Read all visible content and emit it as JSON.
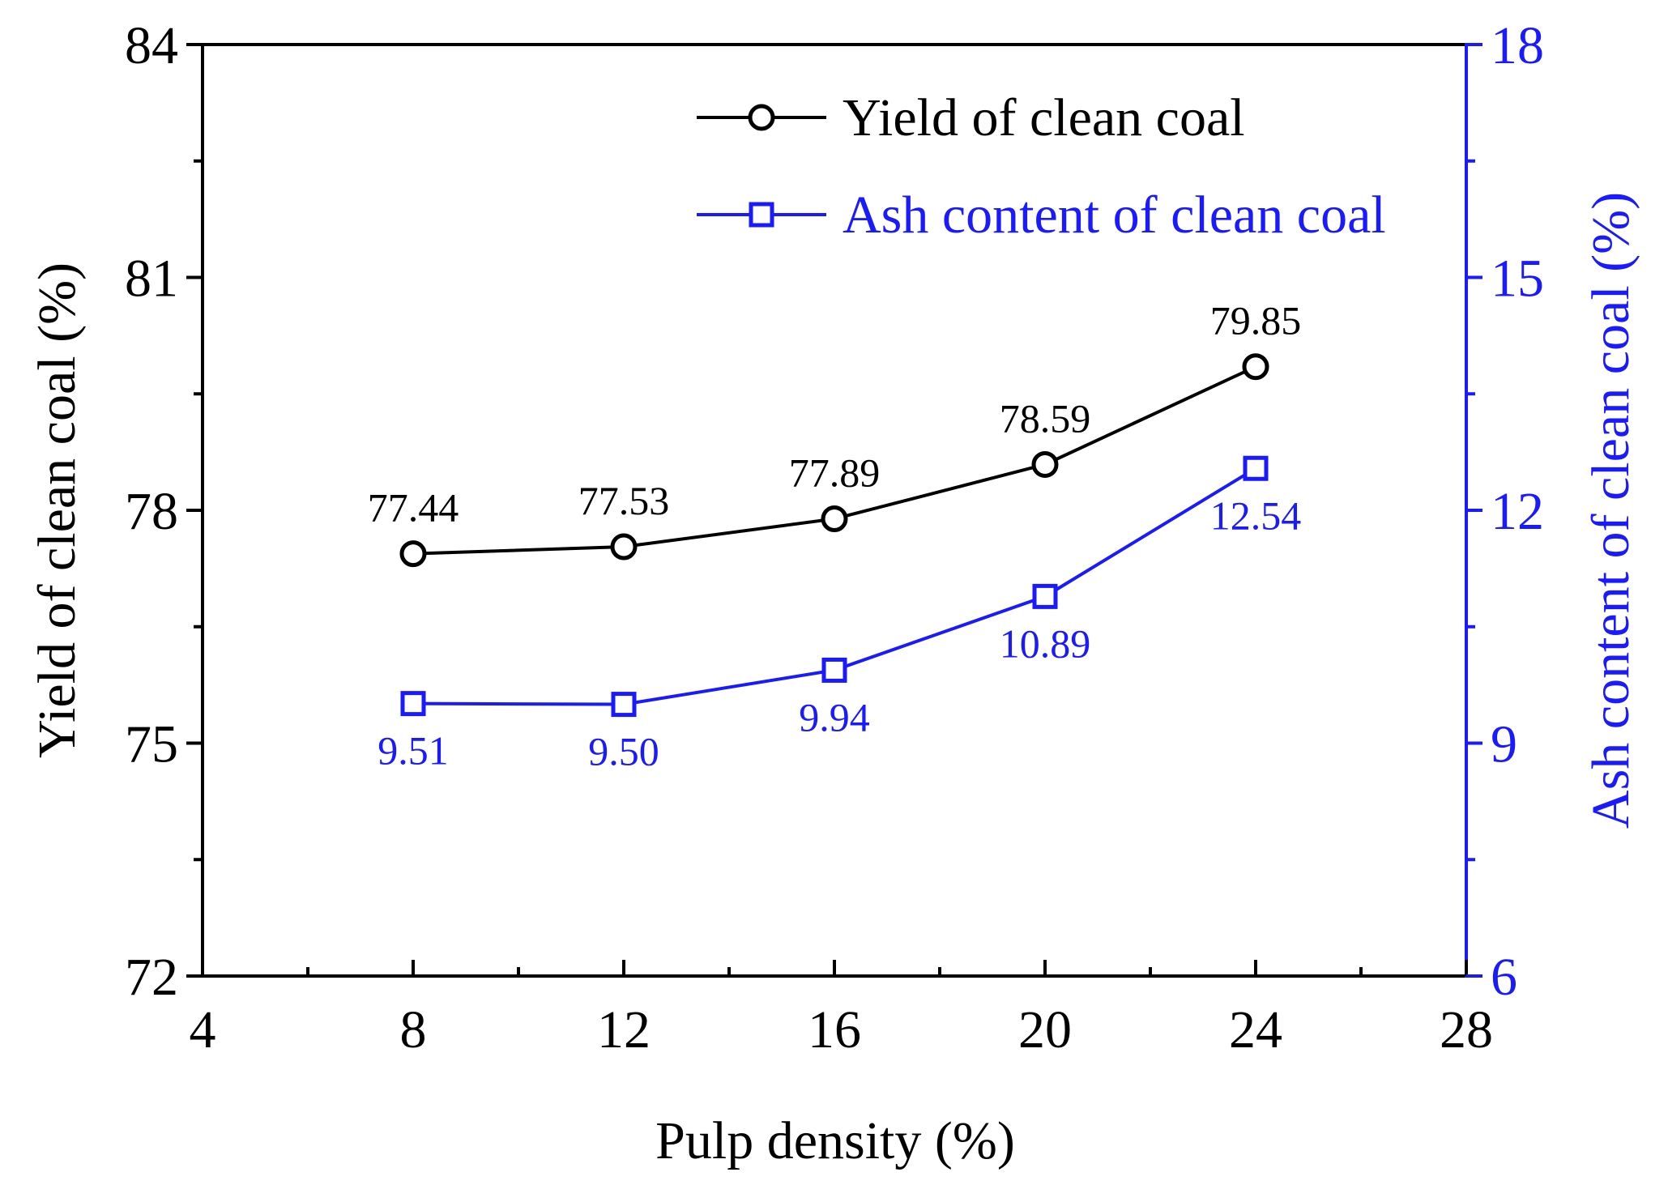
{
  "chart_data": {
    "type": "line",
    "xlabel": "Pulp density (%)",
    "ylabel_left": "Yield of clean coal (%)",
    "ylabel_right": "Ash content of clean coal (%)",
    "xlim": [
      4,
      28
    ],
    "x_major_ticks": [
      4,
      8,
      12,
      16,
      20,
      24,
      28
    ],
    "x_tick_labels": [
      "4",
      "8",
      "12",
      "16",
      "20",
      "24",
      "28"
    ],
    "ylim_left": [
      72,
      84
    ],
    "y_left_major_ticks": [
      72,
      75,
      78,
      81,
      84
    ],
    "y_left_tick_labels": [
      "72",
      "75",
      "78",
      "81",
      "84"
    ],
    "ylim_right": [
      6,
      18
    ],
    "y_right_major_ticks": [
      6,
      9,
      12,
      15,
      18
    ],
    "y_right_tick_labels": [
      "6",
      "9",
      "12",
      "15",
      "18"
    ],
    "legend_position": "top-right",
    "grid": false,
    "x": [
      8,
      12,
      16,
      20,
      24
    ],
    "series": [
      {
        "name": "Yield of clean coal",
        "axis": "left",
        "marker": "circle",
        "color": "#000000",
        "values": [
          77.44,
          77.53,
          77.89,
          78.59,
          79.85
        ],
        "labels": [
          "77.44",
          "77.53",
          "77.89",
          "78.59",
          "79.85"
        ],
        "label_position": "above"
      },
      {
        "name": "Ash content of clean coal",
        "axis": "right",
        "marker": "square",
        "color": "#1a1aff",
        "values": [
          9.51,
          9.5,
          9.94,
          10.89,
          12.54
        ],
        "labels": [
          "9.51",
          "9.50",
          "9.94",
          "10.89",
          "12.54"
        ],
        "label_position": "below"
      }
    ]
  }
}
